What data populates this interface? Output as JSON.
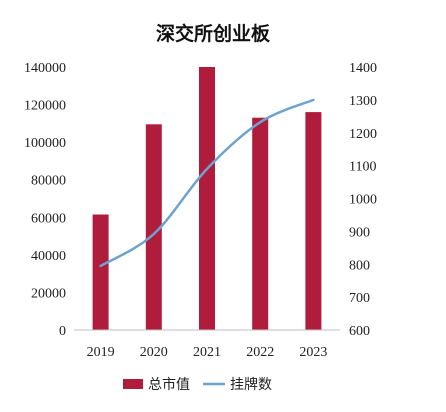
{
  "chart_data": {
    "type": "bar",
    "title": "深交所创业板",
    "categories": [
      "2019",
      "2020",
      "2021",
      "2022",
      "2023"
    ],
    "series": [
      {
        "name": "总市值",
        "type": "bar",
        "axis": "left",
        "color": "#b01c3c",
        "values": [
          61500,
          109500,
          140000,
          113000,
          116000
        ]
      },
      {
        "name": "挂牌数",
        "type": "line",
        "axis": "right",
        "color": "#6fa3cf",
        "values": [
          795,
          892,
          1090,
          1232,
          1300
        ]
      }
    ],
    "y_left": {
      "range": [
        0,
        140000
      ],
      "ticks": [
        "0",
        "20000",
        "40000",
        "60000",
        "80000",
        "100000",
        "120000",
        "140000"
      ]
    },
    "y_right": {
      "range": [
        600,
        1400
      ],
      "ticks": [
        "600",
        "700",
        "800",
        "900",
        "1000",
        "1100",
        "1200",
        "1300",
        "1400"
      ]
    },
    "grid": false,
    "legend_position": "bottom"
  }
}
